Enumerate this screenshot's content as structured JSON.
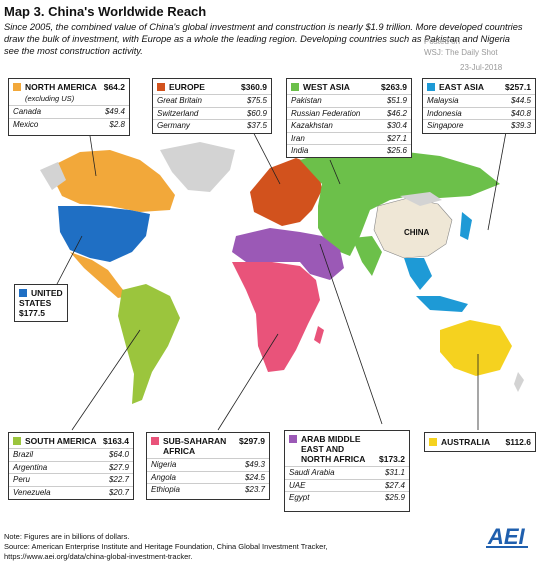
{
  "title": "Map 3. China's Worldwide Reach",
  "intro": "Since 2005, the combined value of China's global investment and construction is nearly $1.9 trillion. More developed countries draw the bulk of investment, with Europe as a whole the leading region. Developing countries such as Pakistan and Nigeria see the most construction activity.",
  "watermark": {
    "line1": "Posted on",
    "line2": "WSJ: The Daily Shot",
    "date": "23-Jul-2018"
  },
  "china_label": "CHINA",
  "colors": {
    "north_america": "#f2a83a",
    "europe": "#d2521d",
    "west_asia": "#6cc04a",
    "east_asia": "#1e9ad6",
    "united_states": "#1f6fc4",
    "south_america": "#9bc53d",
    "sub_saharan": "#e9537a",
    "arab": "#9b59b6",
    "australia": "#f5d21f",
    "china": "#efe7d6",
    "grey": "#d3d3d3"
  },
  "regions": {
    "north_america": {
      "name": "NORTH AMERICA",
      "sub": "(excluding US)",
      "total": "$64.2",
      "rows": [
        {
          "country": "Canada",
          "value": "$49.4"
        },
        {
          "country": "Mexico",
          "value": "$2.8"
        }
      ]
    },
    "europe": {
      "name": "EUROPE",
      "total": "$360.9",
      "rows": [
        {
          "country": "Great Britain",
          "value": "$75.5"
        },
        {
          "country": "Switzerland",
          "value": "$60.9"
        },
        {
          "country": "Germany",
          "value": "$37.5"
        }
      ]
    },
    "west_asia": {
      "name": "WEST ASIA",
      "total": "$263.9",
      "rows": [
        {
          "country": "Pakistan",
          "value": "$51.9"
        },
        {
          "country": "Russian Federation",
          "value": "$46.2"
        },
        {
          "country": "Kazakhstan",
          "value": "$30.4"
        },
        {
          "country": "Iran",
          "value": "$27.1"
        },
        {
          "country": "India",
          "value": "$25.6"
        }
      ]
    },
    "east_asia": {
      "name": "EAST ASIA",
      "total": "$257.1",
      "rows": [
        {
          "country": "Malaysia",
          "value": "$44.5"
        },
        {
          "country": "Indonesia",
          "value": "$40.8"
        },
        {
          "country": "Singapore",
          "value": "$39.3"
        }
      ]
    },
    "united_states": {
      "name_line1": "UNITED",
      "name_line2": "STATES",
      "total": "$177.5"
    },
    "south_america": {
      "name": "SOUTH AMERICA",
      "total": "$163.4",
      "rows": [
        {
          "country": "Brazil",
          "value": "$64.0"
        },
        {
          "country": "Argentina",
          "value": "$27.9"
        },
        {
          "country": "Peru",
          "value": "$22.7"
        },
        {
          "country": "Venezuela",
          "value": "$20.7"
        }
      ]
    },
    "sub_saharan": {
      "name_line1": "SUB-SAHARAN",
      "name_line2": "AFRICA",
      "total": "$297.9",
      "rows": [
        {
          "country": "Nigeria",
          "value": "$49.3"
        },
        {
          "country": "Angola",
          "value": "$24.5"
        },
        {
          "country": "Ethiopia",
          "value": "$23.7"
        }
      ]
    },
    "arab": {
      "name_line1": "ARAB MIDDLE",
      "name_line2": "EAST AND",
      "name_line3": "NORTH AFRICA",
      "total": "$173.2",
      "rows": [
        {
          "country": "Saudi Arabia",
          "value": "$31.1"
        },
        {
          "country": "UAE",
          "value": "$27.4"
        },
        {
          "country": "Egypt",
          "value": "$25.9"
        }
      ]
    },
    "australia": {
      "name": "AUSTRALIA",
      "total": "$112.6"
    }
  },
  "note": {
    "line1": "Note: Figures are in billions of dollars.",
    "line2": "Source: American Enterprise Institute and Heritage Foundation, China Global Investment Tracker,",
    "line3": "https://www.aei.org/data/china-global-investment-tracker."
  },
  "logo": "AEI"
}
